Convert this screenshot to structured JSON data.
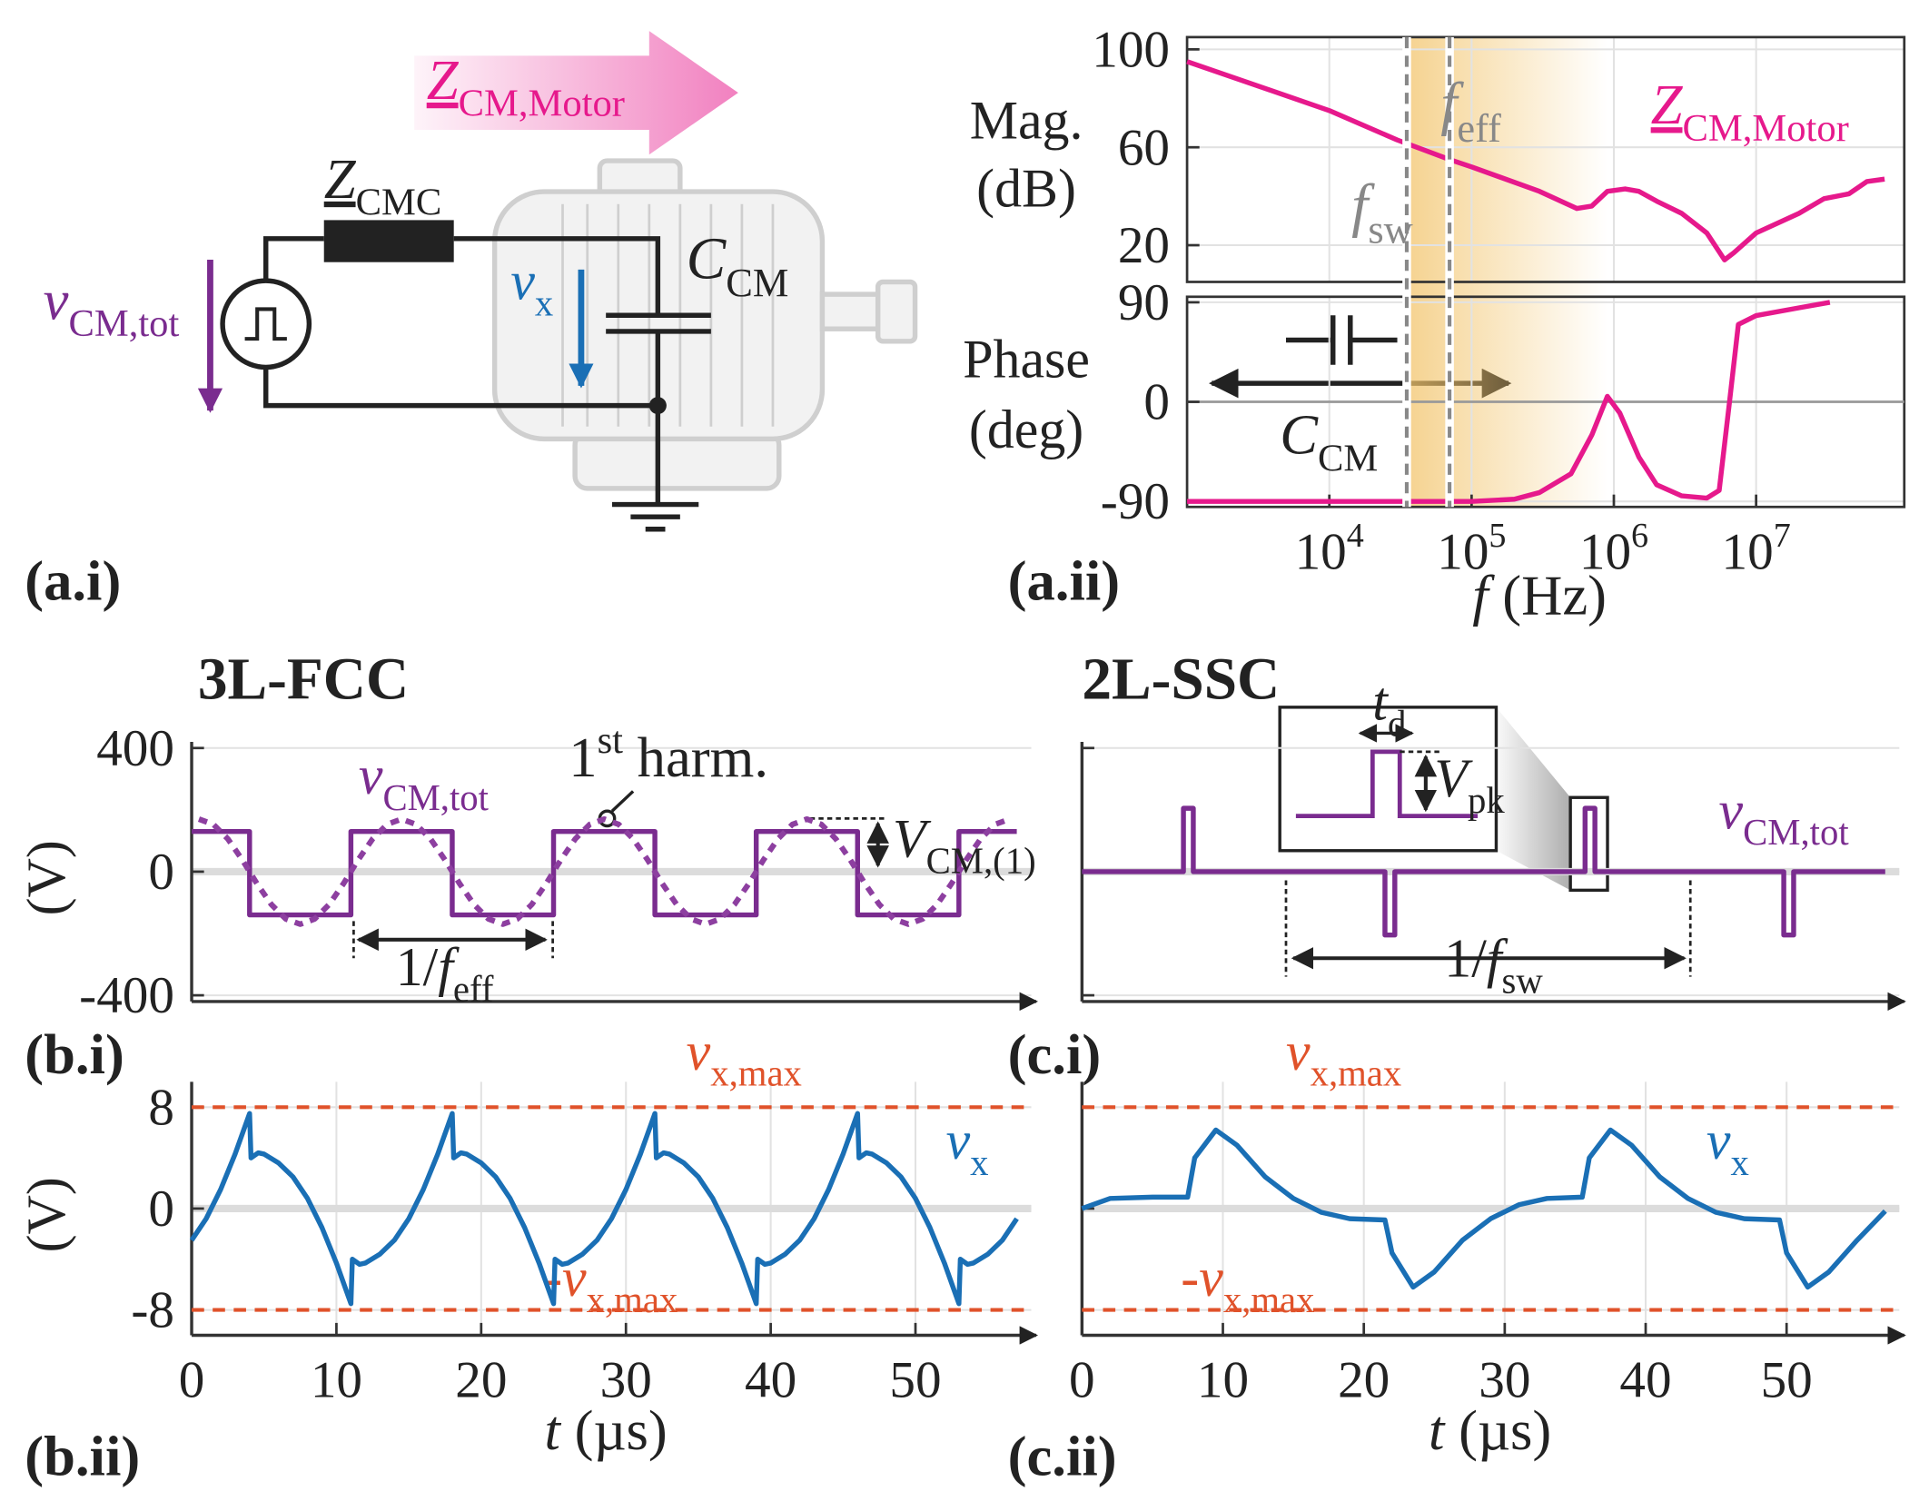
{
  "panel_labels": [
    "(a.i)",
    "(a.ii)",
    "(b.i)",
    "(b.ii)",
    "(c.i)",
    "(c.ii)"
  ],
  "circuit": {
    "z_cm_motor": {
      "base": "Z",
      "sub": "CM,Motor",
      "underline": true,
      "color": "#e6198c"
    },
    "z_cmc": {
      "base": "Z",
      "sub": "CMC",
      "underline": true,
      "color": "#222222"
    },
    "v_cm_tot": {
      "base": "v",
      "sub": "CM,tot",
      "color": "#7a2c8f"
    },
    "v_x": {
      "base": "v",
      "sub": "x",
      "color": "#1a6fb5"
    },
    "c_cm": {
      "base": "C",
      "sub": "CM",
      "color": "#222222"
    }
  },
  "chart_data": [
    {
      "type": "line",
      "log_x": true,
      "ylabel": [
        "Mag.",
        "(dB)"
      ],
      "xlim": [
        1000,
        110000000
      ],
      "ylim": [
        5,
        105
      ],
      "yticks": [
        20,
        60,
        100
      ],
      "grid": true,
      "series": [
        {
          "color": "#e6198c",
          "x": [
            1000,
            10000,
            30000,
            70000,
            100000,
            300000,
            550000,
            700000,
            900000,
            1200000,
            1500000,
            2000000,
            3000000,
            4500000,
            6000000,
            7000000,
            10000000,
            20000000,
            30000000,
            45000000,
            60000000,
            80000000
          ],
          "values": [
            95,
            75,
            63,
            55,
            52,
            42,
            35,
            36,
            42,
            43,
            42,
            38,
            33,
            25,
            14,
            17,
            25,
            33,
            39,
            41,
            46,
            47
          ]
        }
      ],
      "vlines": [
        {
          "value": 35000,
          "color": "#888888",
          "label": {
            "base": "f",
            "sub": "sw",
            "color": "#888888"
          }
        },
        {
          "value": 70000,
          "color": "#888888",
          "label": {
            "base": "f",
            "sub": "eff",
            "color": "#888888"
          }
        }
      ],
      "annotations": [
        {
          "base": "Z",
          "sub": "CM,Motor",
          "underline": true,
          "color": "#e6198c"
        }
      ]
    },
    {
      "type": "line",
      "log_x": true,
      "ylabel": [
        "Phase",
        "(deg)"
      ],
      "xlabel": {
        "base": "f",
        "rest": " (Hz)"
      },
      "xlim": [
        1000,
        110000000
      ],
      "ylim": [
        -95,
        95
      ],
      "yticks": [
        -90,
        0,
        90
      ],
      "grid": true,
      "xticks": [
        {
          "value": 10000,
          "label": "10",
          "exponent": "4"
        },
        {
          "value": 100000,
          "label": "10",
          "exponent": "5"
        },
        {
          "value": 1000000,
          "label": "10",
          "exponent": "6"
        },
        {
          "value": 10000000,
          "label": "10",
          "exponent": "7"
        }
      ],
      "series": [
        {
          "color": "#e6198c",
          "x": [
            1000,
            100000,
            200000,
            300000,
            500000,
            700000,
            900000,
            1100000,
            1500000,
            2000000,
            3000000,
            4500000,
            5500000,
            6500000,
            7500000,
            10000000,
            20000000,
            33000000
          ],
          "values": [
            -90,
            -90,
            -88,
            -82,
            -65,
            -30,
            5,
            -10,
            -50,
            -75,
            -85,
            -87,
            -80,
            0,
            70,
            78,
            85,
            90
          ]
        }
      ],
      "annotations": [
        {
          "base": "C",
          "sub": "CM",
          "color": "#222222"
        }
      ]
    },
    {
      "type": "line",
      "title": "3L-FCC",
      "ylabel": "(V)",
      "xlim": [
        0,
        58
      ],
      "ylim": [
        -420,
        420
      ],
      "yticks": [
        {
          "value": -400,
          "label": "-400"
        },
        0,
        400
      ],
      "grid": true,
      "series": [
        {
          "color": "#7a2c8f",
          "x": [
            0,
            4,
            4,
            11,
            11,
            18,
            18,
            25,
            25,
            32,
            32,
            39,
            39,
            46,
            46,
            53,
            53,
            57
          ],
          "values": [
            130,
            130,
            -140,
            -140,
            130,
            130,
            -140,
            -140,
            130,
            130,
            -140,
            -140,
            130,
            130,
            -140,
            -140,
            130,
            130
          ]
        },
        {
          "color": "#8d3fa0",
          "dash": true,
          "x": [
            0.5,
            1.5,
            2.5,
            3.5,
            4.5,
            5.5,
            6.5,
            7.5,
            8.5,
            9.5,
            10.5,
            11.5,
            12.5,
            13.5,
            14.5,
            15.5,
            16.5,
            17.5,
            18.5,
            19.5,
            20.5,
            21.5,
            22.5,
            23.5,
            24.5,
            25.5,
            26.5,
            27.5,
            28.5,
            29.5,
            30.5,
            31.5,
            32.5,
            33.5,
            34.5,
            35.5,
            36.5,
            37.5,
            38.5,
            39.5,
            40.5,
            41.5,
            42.5,
            43.5,
            44.5,
            45.5,
            46.5,
            47.5,
            48.5,
            49.5,
            50.5,
            51.5,
            52.5,
            53.5,
            54.5,
            55.5,
            56.5
          ],
          "values": [
            170,
            153,
            106,
            38,
            -38,
            -106,
            -153,
            -170,
            -153,
            -106,
            -38,
            38,
            106,
            153,
            170,
            153,
            106,
            38,
            -38,
            -106,
            -153,
            -170,
            -153,
            -106,
            -38,
            38,
            106,
            153,
            170,
            153,
            106,
            38,
            -38,
            -106,
            -153,
            -170,
            -153,
            -106,
            -38,
            38,
            106,
            153,
            170,
            153,
            106,
            38,
            -38,
            -106,
            -153,
            -170,
            -153,
            -106,
            -38,
            38,
            106,
            153,
            170
          ]
        }
      ],
      "annotations": [
        {
          "base": "v",
          "sub": "CM,tot",
          "color": "#7a2c8f"
        },
        {
          "pre": "1",
          "sup": "st",
          "rest": " harm.",
          "color": "#222222"
        },
        {
          "base": "V",
          "sub": "CM,(1)",
          "color": "#222222"
        },
        {
          "pre": "1/",
          "base": "f",
          "sub": "eff",
          "color": "#222222"
        }
      ]
    },
    {
      "type": "line",
      "ylabel": "(V)",
      "xlabel": {
        "base": "t",
        "rest": " (µs)"
      },
      "xlim": [
        0,
        58
      ],
      "ylim": [
        -10,
        10
      ],
      "yticks": [
        -8,
        0,
        8
      ],
      "xticks": [
        0,
        10,
        20,
        30,
        40,
        50
      ],
      "grid": true,
      "hlines": [
        {
          "value": 8,
          "color": "#e0522a",
          "label": {
            "base": "v",
            "sub": "x,max",
            "color": "#e0522a"
          }
        },
        {
          "value": -8,
          "color": "#e0522a",
          "label": {
            "pre": "-",
            "base": "v",
            "sub": "x,max",
            "color": "#e0522a"
          }
        }
      ],
      "series": [
        {
          "color": "#1a6fb5",
          "x": [
            0,
            1,
            2,
            3,
            4,
            4.1,
            4.6,
            5,
            6,
            7,
            8,
            9,
            10,
            11,
            11.1,
            11.6,
            12,
            13,
            14,
            15,
            16,
            17,
            18,
            18.1,
            18.6,
            19,
            20,
            21,
            22,
            23,
            24,
            25,
            25.1,
            25.6,
            26,
            27,
            28,
            29,
            30,
            31,
            32,
            32.1,
            32.6,
            33,
            34,
            35,
            36,
            37,
            38,
            39,
            39.1,
            39.6,
            40,
            41,
            42,
            43,
            44,
            45,
            46,
            46.1,
            46.6,
            47,
            48,
            49,
            50,
            51,
            52,
            53,
            53.1,
            53.6,
            54,
            55,
            56,
            57
          ],
          "values": [
            -2.5,
            -0.8,
            1.5,
            4.3,
            7.5,
            4,
            4.4,
            4.3,
            3.6,
            2.5,
            0.8,
            -1.5,
            -4.3,
            -7.5,
            -4,
            -4.4,
            -4.3,
            -3.6,
            -2.5,
            -0.8,
            1.5,
            4.3,
            7.5,
            4,
            4.4,
            4.3,
            3.6,
            2.5,
            0.8,
            -1.5,
            -4.3,
            -7.5,
            -4,
            -4.4,
            -4.3,
            -3.6,
            -2.5,
            -0.8,
            1.5,
            4.3,
            7.5,
            4,
            4.4,
            4.3,
            3.6,
            2.5,
            0.8,
            -1.5,
            -4.3,
            -7.5,
            -4,
            -4.4,
            -4.3,
            -3.6,
            -2.5,
            -0.8,
            1.5,
            4.3,
            7.5,
            4,
            4.4,
            4.3,
            3.6,
            2.5,
            0.8,
            -1.5,
            -4.3,
            -7.5,
            -4,
            -4.4,
            -4.3,
            -3.6,
            -2.5,
            -0.8
          ]
        }
      ],
      "annotations": [
        {
          "base": "v",
          "sub": "x",
          "color": "#1a6fb5"
        }
      ]
    },
    {
      "type": "line",
      "title": "2L-SSC",
      "ytick_labels": false,
      "xlim": [
        0,
        58
      ],
      "ylim": [
        -420,
        420
      ],
      "yticks": [
        -400,
        0,
        400
      ],
      "grid": true,
      "series": [
        {
          "color": "#7a2c8f",
          "x": [
            0,
            7.2,
            7.2,
            7.9,
            7.9,
            21.5,
            21.5,
            22.2,
            22.2,
            35.7,
            35.7,
            36.4,
            36.4,
            49.8,
            49.8,
            50.5,
            50.5,
            57
          ],
          "values": [
            0,
            0,
            205,
            205,
            0,
            0,
            -205,
            -205,
            0,
            0,
            205,
            205,
            0,
            0,
            -205,
            -205,
            0,
            0
          ]
        }
      ],
      "annotations": [
        {
          "base": "t",
          "sub": "d",
          "color": "#222222"
        },
        {
          "base": "V",
          "sub": "pk",
          "color": "#222222"
        },
        {
          "base": "v",
          "sub": "CM,tot",
          "color": "#7a2c8f"
        },
        {
          "pre": "1/",
          "base": "f",
          "sub": "sw",
          "color": "#222222"
        }
      ]
    },
    {
      "type": "line",
      "ytick_labels": false,
      "xlabel": {
        "base": "t",
        "rest": " (µs)"
      },
      "xlim": [
        0,
        58
      ],
      "ylim": [
        -10,
        10
      ],
      "yticks": [
        -8,
        0,
        8
      ],
      "xticks": [
        0,
        10,
        20,
        30,
        40,
        50
      ],
      "grid": true,
      "hlines": [
        {
          "value": 8,
          "color": "#e0522a",
          "label": {
            "base": "v",
            "sub": "x,max",
            "color": "#e0522a"
          }
        },
        {
          "value": -8,
          "color": "#e0522a",
          "label": {
            "pre": "-",
            "base": "v",
            "sub": "x,max",
            "color": "#e0522a"
          }
        }
      ],
      "series": [
        {
          "color": "#1a6fb5",
          "x": [
            0,
            2,
            5,
            7.5,
            8,
            9.5,
            11,
            13,
            15,
            17,
            19,
            21.5,
            22,
            23.5,
            25,
            27,
            29,
            31,
            33,
            35.5,
            36,
            37.5,
            39,
            41,
            43,
            45,
            47,
            49.5,
            50,
            51.5,
            53,
            55,
            57
          ],
          "values": [
            0,
            0.8,
            0.9,
            0.9,
            4,
            6.2,
            5,
            2.5,
            0.8,
            -0.3,
            -0.8,
            -0.9,
            -3.5,
            -6.2,
            -5,
            -2.5,
            -0.8,
            0.3,
            0.8,
            0.9,
            4,
            6.2,
            5,
            2.5,
            0.8,
            -0.3,
            -0.8,
            -0.9,
            -3.5,
            -6.2,
            -5,
            -2.5,
            -0.2
          ]
        }
      ],
      "annotations": [
        {
          "base": "v",
          "sub": "x",
          "color": "#1a6fb5"
        }
      ]
    }
  ]
}
